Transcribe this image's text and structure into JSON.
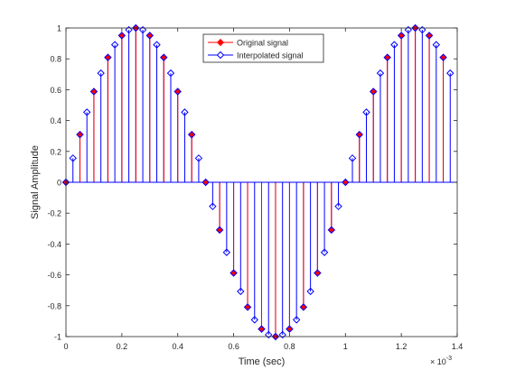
{
  "chart_data": {
    "type": "stem",
    "xlabel": "Time (sec)",
    "ylabel": "Signal Amplitude",
    "x_exponent_label": "× 10",
    "x_exponent_power": "-3",
    "xlim": [
      0,
      1.4
    ],
    "ylim": [
      -1,
      1
    ],
    "x_unit_scale": "1e-3",
    "xticks": [
      0,
      0.2,
      0.4,
      0.6,
      0.8,
      1,
      1.2,
      1.4
    ],
    "xtick_labels": [
      "0",
      "0.2",
      "0.4",
      "0.6",
      "0.8",
      "1",
      "1.2",
      "1.4"
    ],
    "yticks": [
      -1,
      -0.8,
      -0.6,
      -0.4,
      -0.2,
      0,
      0.2,
      0.4,
      0.6,
      0.8,
      1
    ],
    "ytick_labels": [
      "-1",
      "-0.8",
      "-0.6",
      "-0.4",
      "-0.2",
      "0",
      "0.2",
      "0.4",
      "0.6",
      "0.8",
      "1"
    ],
    "legend_position": "top-center",
    "series": [
      {
        "name": "Original signal",
        "color": "#ff0000",
        "marker": "filled-diamond",
        "x": [
          0,
          0.05,
          0.1,
          0.15,
          0.2,
          0.25,
          0.3,
          0.35,
          0.4,
          0.45,
          0.5,
          0.55,
          0.6,
          0.65,
          0.7,
          0.75,
          0.8,
          0.85,
          0.9,
          0.95,
          1.0,
          1.05,
          1.1,
          1.15,
          1.2,
          1.25,
          1.3,
          1.35
        ],
        "y": [
          0,
          0.309,
          0.588,
          0.809,
          0.951,
          1.0,
          0.951,
          0.809,
          0.588,
          0.309,
          0,
          -0.309,
          -0.588,
          -0.809,
          -0.951,
          -1.0,
          -0.951,
          -0.809,
          -0.588,
          -0.309,
          0,
          0.309,
          0.588,
          0.809,
          0.951,
          1.0,
          0.951,
          0.809
        ]
      },
      {
        "name": "Interpolated signal",
        "color": "#0000ff",
        "marker": "open-diamond",
        "x": [
          0,
          0.025,
          0.05,
          0.075,
          0.1,
          0.125,
          0.15,
          0.175,
          0.2,
          0.225,
          0.25,
          0.275,
          0.3,
          0.325,
          0.35,
          0.375,
          0.4,
          0.425,
          0.45,
          0.475,
          0.5,
          0.525,
          0.55,
          0.575,
          0.6,
          0.625,
          0.65,
          0.675,
          0.7,
          0.725,
          0.75,
          0.775,
          0.8,
          0.825,
          0.85,
          0.875,
          0.9,
          0.925,
          0.95,
          0.975,
          1.0,
          1.025,
          1.05,
          1.075,
          1.1,
          1.125,
          1.15,
          1.175,
          1.2,
          1.225,
          1.25,
          1.275,
          1.3,
          1.325,
          1.35,
          1.375
        ],
        "y": [
          0,
          0.156,
          0.309,
          0.454,
          0.588,
          0.707,
          0.809,
          0.891,
          0.951,
          0.988,
          1.0,
          0.988,
          0.951,
          0.891,
          0.809,
          0.707,
          0.588,
          0.454,
          0.309,
          0.156,
          0,
          -0.156,
          -0.309,
          -0.454,
          -0.588,
          -0.707,
          -0.809,
          -0.891,
          -0.951,
          -0.988,
          -1.0,
          -0.988,
          -0.951,
          -0.891,
          -0.809,
          -0.707,
          -0.588,
          -0.454,
          -0.309,
          -0.156,
          0,
          0.156,
          0.309,
          0.454,
          0.588,
          0.707,
          0.809,
          0.891,
          0.951,
          0.988,
          1.0,
          0.988,
          0.951,
          0.891,
          0.809,
          0.707
        ]
      }
    ]
  }
}
